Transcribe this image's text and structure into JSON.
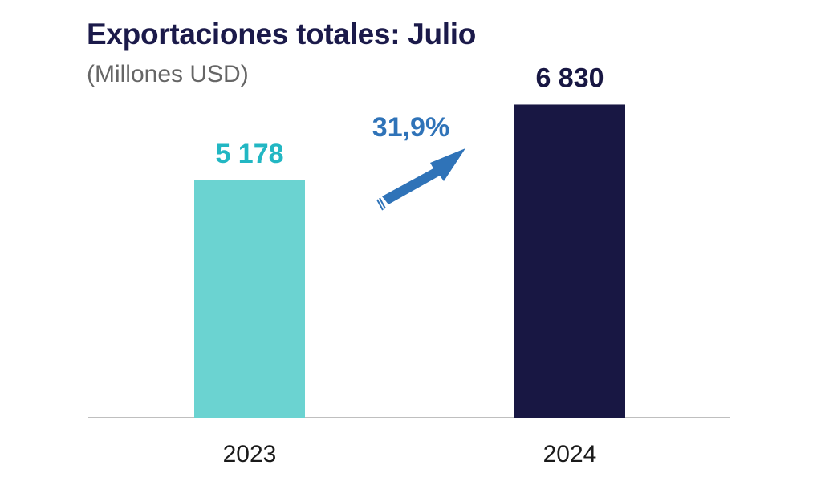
{
  "chart_data": {
    "type": "bar",
    "title": "Exportaciones totales: Julio",
    "subtitle": "(Millones USD)",
    "categories": [
      "2023",
      "2024"
    ],
    "values": [
      5178,
      6830
    ],
    "value_labels": [
      "5 178",
      "6 830"
    ],
    "ylim": [
      0,
      7800
    ],
    "grid": false,
    "legend": "none",
    "annotation": {
      "text": "31,9%",
      "type": "growth-arrow"
    }
  },
  "colors": {
    "title": "#1b1a4a",
    "subtitle": "#666666",
    "bar_2023": "#6bd3d1",
    "bar_2024": "#181743",
    "label_2023": "#22b7c3",
    "label_2024": "#181743",
    "growth_arrow": "#2f73b8",
    "growth_label": "#2f73b8",
    "axis": "#bfbfbf"
  }
}
